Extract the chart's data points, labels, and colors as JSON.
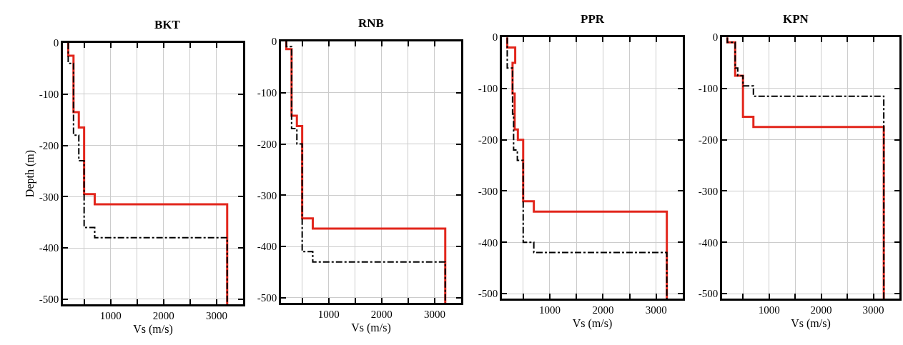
{
  "chart_data": [
    {
      "type": "line",
      "title": "BKT",
      "xlabel": "Vs (m/s)",
      "ylabel": "Depth (m)",
      "xlim": [
        100,
        3500
      ],
      "ylim": [
        -510,
        0
      ],
      "xticks": [
        {
          "value": 500,
          "label": null
        },
        1000,
        {
          "value": 1500,
          "label": null
        },
        2000,
        {
          "value": 2500,
          "label": null
        },
        3000
      ],
      "yticks": [
        0,
        -100,
        -200,
        -300,
        -400,
        -500
      ],
      "grid": true,
      "series": [
        {
          "color": "#e2261c",
          "line_style": "solid",
          "x": [
            200,
            200,
            300,
            300,
            400,
            400,
            500,
            500,
            700,
            700,
            3200,
            3200
          ],
          "values": [
            0,
            -25,
            -25,
            -135,
            -135,
            -165,
            -165,
            -295,
            -295,
            -315,
            -315,
            -510
          ]
        },
        {
          "color": "#000000",
          "line_style": "dashdot",
          "x": [
            200,
            200,
            300,
            300,
            400,
            400,
            500,
            500,
            700,
            700,
            3200,
            3200
          ],
          "values": [
            0,
            -40,
            -40,
            -180,
            -180,
            -230,
            -230,
            -360,
            -360,
            -380,
            -380,
            -510
          ]
        }
      ]
    },
    {
      "type": "line",
      "title": "RNB",
      "xlabel": "Vs (m/s)",
      "xlim": [
        100,
        3500
      ],
      "ylim": [
        -510,
        0
      ],
      "xticks": [
        {
          "value": 500,
          "label": null
        },
        1000,
        {
          "value": 1500,
          "label": null
        },
        2000,
        {
          "value": 2500,
          "label": null
        },
        3000
      ],
      "yticks": [
        0,
        -100,
        -200,
        -300,
        -400,
        -500
      ],
      "grid": true,
      "series": [
        {
          "color": "#e2261c",
          "line_style": "solid",
          "x": [
            200,
            200,
            300,
            300,
            400,
            400,
            500,
            500,
            700,
            700,
            3200,
            3200
          ],
          "values": [
            0,
            -15,
            -15,
            -145,
            -145,
            -165,
            -165,
            -345,
            -345,
            -365,
            -365,
            -510
          ]
        },
        {
          "color": "#000000",
          "line_style": "dashdot",
          "x": [
            200,
            200,
            300,
            300,
            400,
            400,
            500,
            500,
            700,
            700,
            3200,
            3200
          ],
          "values": [
            0,
            -10,
            -10,
            -170,
            -170,
            -200,
            -200,
            -410,
            -410,
            -430,
            -430,
            -510
          ]
        }
      ]
    },
    {
      "type": "line",
      "title": "PPR",
      "xlabel": "Vs (m/s)",
      "xlim": [
        100,
        3500
      ],
      "ylim": [
        -510,
        0
      ],
      "xticks": [
        {
          "value": 500,
          "label": null
        },
        1000,
        {
          "value": 1500,
          "label": null
        },
        2000,
        {
          "value": 2500,
          "label": null
        },
        3000
      ],
      "yticks": [
        0,
        -100,
        -200,
        -300,
        -400,
        -500
      ],
      "grid": true,
      "series": [
        {
          "color": "#e2261c",
          "line_style": "solid",
          "x": [
            200,
            200,
            350,
            350,
            300,
            300,
            340,
            340,
            400,
            400,
            500,
            500,
            700,
            700,
            3200,
            3200
          ],
          "values": [
            0,
            -20,
            -20,
            -50,
            -50,
            -110,
            -110,
            -180,
            -180,
            -200,
            -200,
            -320,
            -320,
            -340,
            -340,
            -510
          ]
        },
        {
          "color": "#000000",
          "line_style": "dashdot",
          "x": [
            200,
            200,
            300,
            300,
            320,
            320,
            390,
            390,
            500,
            500,
            700,
            700,
            3200,
            3200
          ],
          "values": [
            0,
            -60,
            -60,
            -150,
            -150,
            -220,
            -220,
            -240,
            -240,
            -400,
            -400,
            -420,
            -420,
            -510
          ]
        }
      ]
    },
    {
      "type": "line",
      "title": "KPN",
      "xlabel": "Vs (m/s)",
      "xlim": [
        100,
        3500
      ],
      "ylim": [
        -510,
        0
      ],
      "xticks": [
        {
          "value": 500,
          "label": null
        },
        1000,
        {
          "value": 1500,
          "label": null
        },
        2000,
        {
          "value": 2500,
          "label": null
        },
        3000
      ],
      "yticks": [
        0,
        -100,
        -200,
        -300,
        -400,
        -500
      ],
      "grid": true,
      "series": [
        {
          "color": "#e2261c",
          "line_style": "solid",
          "x": [
            200,
            200,
            350,
            350,
            500,
            500,
            700,
            700,
            3200,
            3200
          ],
          "values": [
            0,
            -10,
            -10,
            -75,
            -75,
            -155,
            -155,
            -175,
            -175,
            -510
          ]
        },
        {
          "color": "#000000",
          "line_style": "dashdot",
          "x": [
            200,
            200,
            350,
            350,
            400,
            400,
            500,
            500,
            700,
            700,
            3200,
            3200
          ],
          "values": [
            0,
            -10,
            -10,
            -60,
            -60,
            -75,
            -75,
            -95,
            -95,
            -115,
            -115,
            -510
          ]
        }
      ]
    }
  ]
}
